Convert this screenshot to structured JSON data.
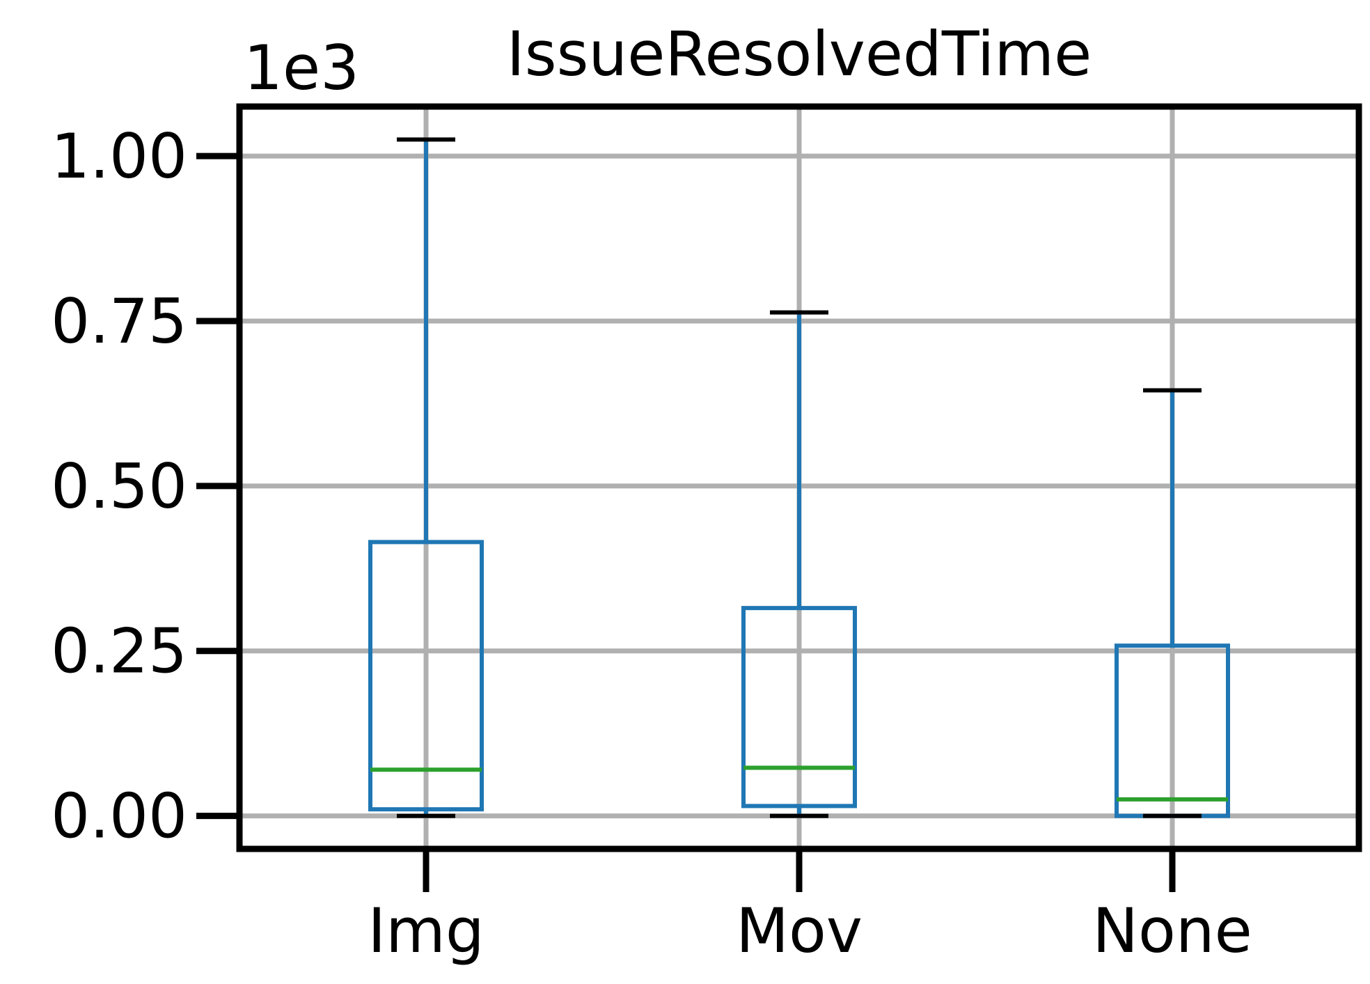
{
  "chart_data": {
    "type": "box",
    "title": "IssueResolvedTime",
    "y_offset_label": "1e3",
    "y_scale_factor": 1000,
    "xlabel": "",
    "ylabel": "",
    "ylim": [
      -50,
      1075
    ],
    "y_ticks": [
      0,
      250,
      500,
      750,
      1000
    ],
    "y_tick_labels": [
      "0.00",
      "0.25",
      "0.50",
      "0.75",
      "1.00"
    ],
    "grid": true,
    "categories": [
      "Img",
      "Mov",
      "None"
    ],
    "boxes": [
      {
        "category": "Img",
        "whisker_low": 0,
        "q1": 10,
        "median": 70,
        "q3": 415,
        "whisker_high": 1025
      },
      {
        "category": "Mov",
        "whisker_low": 0,
        "q1": 15,
        "median": 73,
        "q3": 315,
        "whisker_high": 763
      },
      {
        "category": "None",
        "whisker_low": 0,
        "q1": 0,
        "median": 25,
        "q3": 258,
        "whisker_high": 645
      }
    ],
    "colors": {
      "box": "#1f77b4",
      "median": "#2ca02c",
      "cap": "#000000",
      "grid": "#b0b0b0",
      "axes": "#000000"
    }
  }
}
